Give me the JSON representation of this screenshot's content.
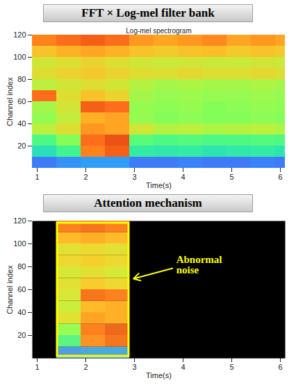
{
  "chart_data": [
    {
      "type": "heatmap",
      "title": "FFT × Log-mel filter bank",
      "subtitle": "Log-mel spectrogram",
      "x_label": "Time(s)",
      "y_label": "Channel index",
      "xlim": [
        0.9,
        6.1
      ],
      "xticks": [
        1,
        2,
        3,
        4,
        5,
        6
      ],
      "ylim": [
        0,
        120
      ],
      "yticks": [
        20,
        40,
        60,
        80,
        100,
        120
      ],
      "x_edges": [
        0.9,
        1.4,
        1.9,
        2.4,
        2.9,
        3.4,
        3.9,
        4.4,
        4.9,
        5.4,
        5.9,
        6.1
      ],
      "y_edges": [
        0,
        10,
        20,
        30,
        40,
        50,
        60,
        70,
        80,
        90,
        100,
        110,
        120
      ],
      "color_range": [
        0,
        10
      ],
      "cells": [
        [
          1.5,
          1.8,
          2.0,
          2.0,
          1.5,
          1.5,
          1.6,
          1.5,
          1.5,
          1.6,
          1.5
        ],
        [
          3.2,
          3.8,
          7.5,
          8.0,
          3.5,
          3.4,
          3.5,
          3.3,
          3.4,
          3.5,
          3.3
        ],
        [
          4.0,
          4.8,
          7.8,
          8.2,
          4.2,
          4.0,
          4.1,
          4.0,
          4.0,
          4.1,
          4.0
        ],
        [
          5.5,
          6.0,
          7.2,
          7.0,
          5.8,
          5.4,
          5.5,
          5.3,
          5.4,
          5.5,
          5.3
        ],
        [
          5.0,
          5.6,
          6.8,
          7.0,
          5.0,
          4.8,
          4.9,
          4.8,
          4.8,
          4.9,
          4.8
        ],
        [
          5.2,
          5.8,
          8.0,
          7.8,
          5.0,
          4.9,
          5.0,
          4.8,
          4.9,
          5.0,
          4.9
        ],
        [
          7.8,
          6.0,
          6.5,
          6.2,
          5.2,
          5.0,
          5.1,
          5.0,
          5.0,
          5.1,
          5.0
        ],
        [
          5.5,
          5.8,
          6.0,
          5.8,
          5.4,
          5.2,
          5.3,
          5.2,
          5.2,
          5.3,
          5.2
        ],
        [
          6.0,
          6.2,
          6.4,
          6.2,
          6.0,
          6.0,
          6.1,
          6.0,
          6.0,
          6.1,
          6.0
        ],
        [
          5.8,
          6.0,
          6.2,
          6.0,
          5.8,
          5.7,
          5.8,
          5.7,
          5.7,
          5.8,
          5.7
        ],
        [
          6.5,
          6.8,
          7.0,
          6.8,
          6.5,
          6.4,
          6.5,
          6.6,
          6.4,
          6.5,
          6.4
        ],
        [
          7.5,
          7.8,
          8.0,
          7.8,
          7.2,
          7.0,
          7.2,
          7.4,
          7.0,
          7.2,
          7.0
        ]
      ]
    },
    {
      "type": "heatmap",
      "title": "Attention mechanism",
      "x_label": "Time(s)",
      "y_label": "Channel index",
      "xlim": [
        0.9,
        6.1
      ],
      "xticks": [
        1,
        2,
        3,
        4,
        5,
        6
      ],
      "ylim": [
        0,
        120
      ],
      "yticks": [
        20,
        40,
        60,
        80,
        100,
        120
      ],
      "x_edges": [
        1.4,
        1.9,
        2.4,
        2.9
      ],
      "y_edges": [
        0,
        10,
        20,
        30,
        40,
        50,
        60,
        70,
        80,
        90,
        100,
        110,
        120
      ],
      "color_range": [
        0,
        10
      ],
      "annotation": "Abnormal noise",
      "cells": [
        [
          1.8,
          2.0,
          2.0
        ],
        [
          3.8,
          7.5,
          8.0
        ],
        [
          4.8,
          7.8,
          8.2
        ],
        [
          6.0,
          7.2,
          7.0
        ],
        [
          5.6,
          6.8,
          7.0
        ],
        [
          5.8,
          8.0,
          7.8
        ],
        [
          6.0,
          6.5,
          6.2
        ],
        [
          5.8,
          6.0,
          5.8
        ],
        [
          6.2,
          6.4,
          6.2
        ],
        [
          6.0,
          6.2,
          6.0
        ],
        [
          6.8,
          7.0,
          6.8
        ],
        [
          7.8,
          8.0,
          7.8
        ]
      ]
    }
  ]
}
